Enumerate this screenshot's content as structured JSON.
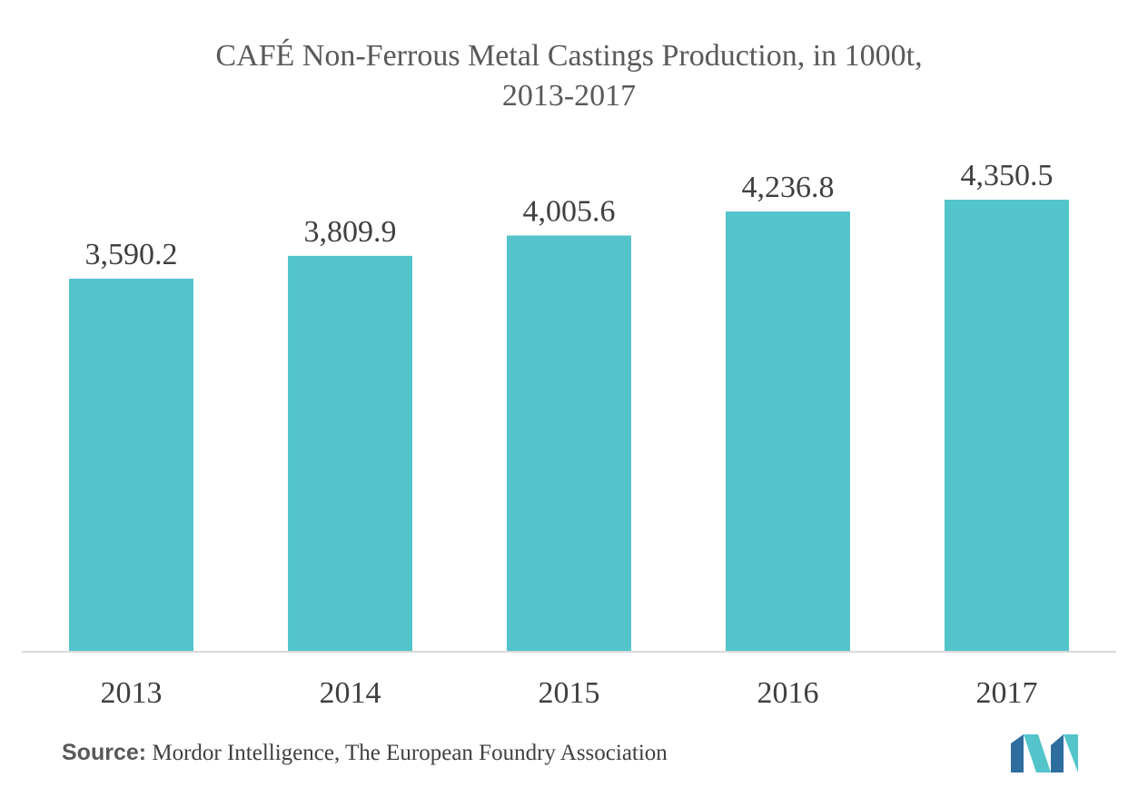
{
  "chart_data": {
    "type": "bar",
    "title": "CAFÉ Non-Ferrous Metal Castings Production, in 1000t,",
    "subtitle": "2013-2017",
    "categories": [
      "2013",
      "2014",
      "2015",
      "2016",
      "2017"
    ],
    "values": [
      3590.2,
      3809.9,
      4005.6,
      4236.8,
      4350.5
    ],
    "value_labels": [
      "3,590.2",
      "3,809.9",
      "4,005.6",
      "4,236.8",
      "4,350.5"
    ],
    "xlabel": "",
    "ylabel": "",
    "ylim": [
      0,
      4350.5
    ],
    "grid": false,
    "legend": "none",
    "bar_color": "#52c4ca"
  },
  "source": {
    "label": "Source:",
    "text": "Mordor Intelligence, The European Foundry Association"
  },
  "colors": {
    "bar": "#52c4ca",
    "text": "#595959",
    "axis": "#d9d9d9",
    "logo_dark": "#2e6e9e",
    "logo_light": "#52c4ca"
  }
}
